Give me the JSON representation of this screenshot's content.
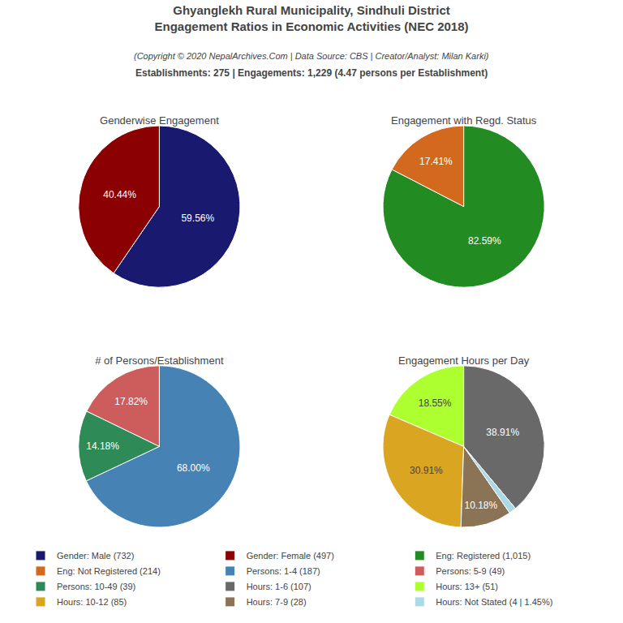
{
  "title": "Ghyanglekh Rural Municipality, Sindhuli District\nEngagement Ratios in Economic Activities (NEC 2018)",
  "subtitle": "(Copyright © 2020 NepalArchives.Com | Data Source: CBS | Creator/Analyst: Milan Karki)",
  "annotations": [
    "Establishments: 275 | Engagements: 1,229 (4.47 persons per Establishment)"
  ],
  "chart_data": [
    {
      "type": "pie",
      "title": "Genderwise Engagement",
      "categories": [
        "Gender: Male (732)",
        "Gender: Female (497)"
      ],
      "values": [
        59.56,
        40.44
      ],
      "value_labels": [
        "59.56%",
        "40.44%"
      ],
      "colors": [
        "#191970",
        "#8B0000"
      ],
      "data_labels": true
    },
    {
      "type": "pie",
      "title": "Engagement with Regd. Status",
      "categories": [
        "Eng: Registered (1,015)",
        "Eng: Not Registered (214)"
      ],
      "values": [
        82.59,
        17.41
      ],
      "value_labels": [
        "82.59%",
        "17.41%"
      ],
      "colors": [
        "#228B22",
        "#D2691E"
      ],
      "data_labels": true
    },
    {
      "type": "pie",
      "title": "# of Persons/Establishment",
      "categories": [
        "Persons: 1-4 (187)",
        "Persons: 5-9 (49)",
        "Persons: 10-49 (39)"
      ],
      "values": [
        68.0,
        17.82,
        14.18
      ],
      "value_labels": [
        "68.00%",
        "17.82%",
        "14.18%"
      ],
      "colors": [
        "#4682B4",
        "#CD5C5C",
        "#2E8B57"
      ],
      "data_labels": true
    },
    {
      "type": "pie",
      "title": "Engagement Hours per Day",
      "categories": [
        "Hours: 1-6 (107)",
        "Hours: 13+ (51)",
        "Hours: 10-12 (85)",
        "Hours: 7-9 (28)",
        "Hours: Not Stated (4 | 1.45%)"
      ],
      "values": [
        38.91,
        18.55,
        30.91,
        10.18,
        1.45
      ],
      "value_labels": [
        "38.91%",
        "18.55%",
        "30.91%",
        "10.18%",
        null
      ],
      "colors": [
        "#696969",
        "#ADFF2F",
        "#DAA520",
        "#8B7355",
        "#ADD8E6"
      ],
      "data_labels": true
    }
  ]
}
